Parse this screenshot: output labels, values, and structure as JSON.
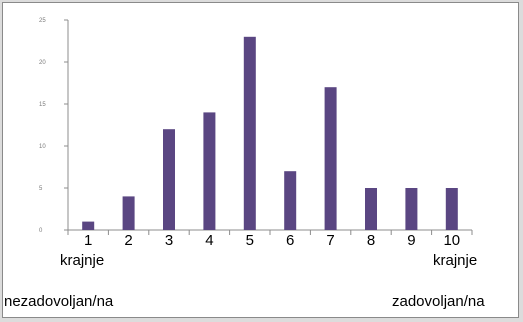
{
  "chart_data": {
    "type": "bar",
    "categories": [
      "1",
      "2",
      "3",
      "4",
      "5",
      "6",
      "7",
      "8",
      "9",
      "10"
    ],
    "values": [
      1,
      4,
      12,
      14,
      23,
      7,
      17,
      5,
      5,
      5
    ],
    "ylim": [
      0,
      25
    ],
    "yticks": [
      "0",
      "5",
      "10",
      "15",
      "20",
      "25"
    ],
    "title": "",
    "xlabel": "",
    "ylabel": "",
    "grid": false,
    "bar_color": "#5a4682",
    "annotations": {
      "left_line1": "krajnje",
      "left_line2": "nezadovoljan/na",
      "right_line1": "krajnje",
      "right_line2": "zadovoljan/na"
    }
  }
}
